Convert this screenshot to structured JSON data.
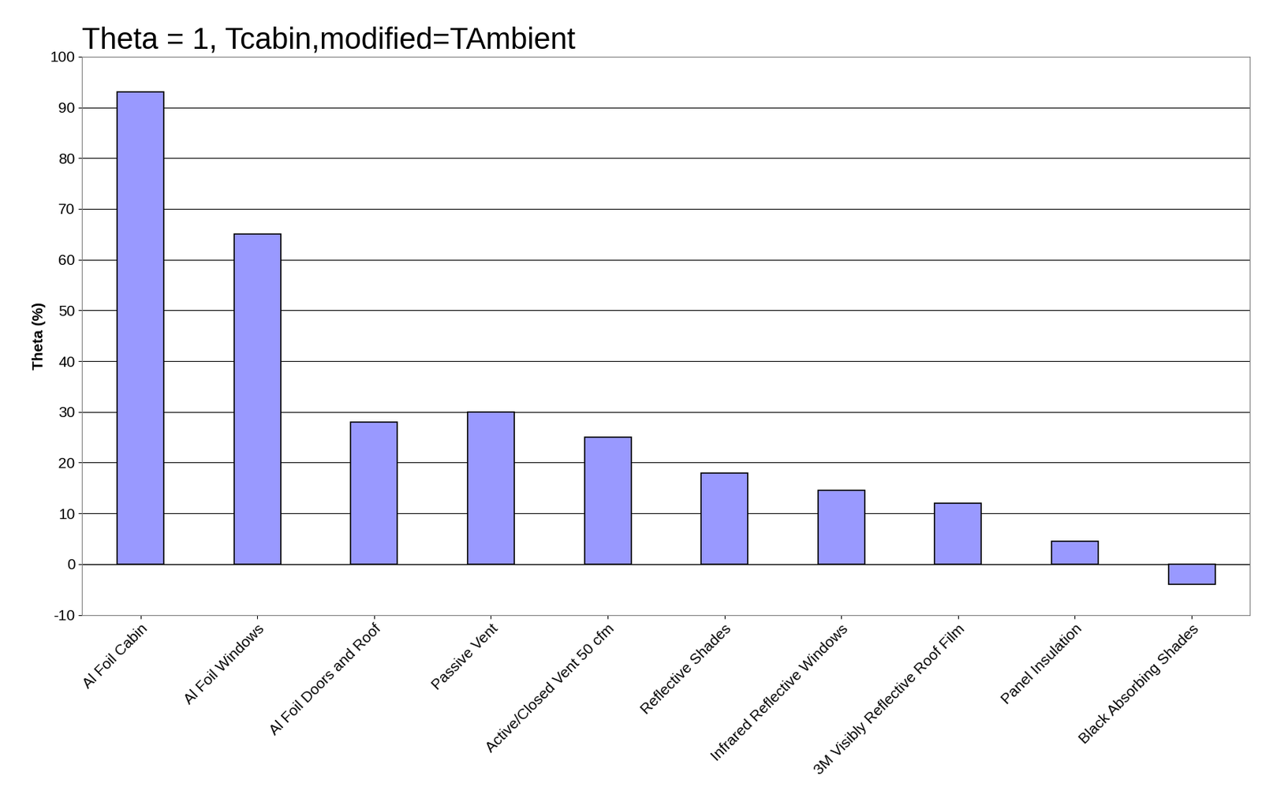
{
  "chart_data": {
    "type": "bar",
    "title": "Theta = 1, Tcabin,modified=TAmbient",
    "y_label": "Theta (%)",
    "categories": [
      "Al Foil Cabin",
      "Al Foil Windows",
      "Al Foil Doors and Roof",
      "Passive Vent",
      "Active/Closed Vent 50 cfm",
      "Reflective Shades",
      "Infrared Reflective Windows",
      "3M Visibly Reflective Roof Film",
      "Panel Insulation",
      "Black Absorbing Shades"
    ],
    "values": [
      93,
      65,
      28,
      30,
      25,
      18,
      14.5,
      12,
      4.5,
      -4
    ],
    "color": "#9999ff",
    "ylim": [
      -10,
      100
    ],
    "yticks": [
      -10,
      0,
      10,
      20,
      30,
      40,
      50,
      60,
      70,
      80,
      90,
      100
    ],
    "grid": true
  }
}
